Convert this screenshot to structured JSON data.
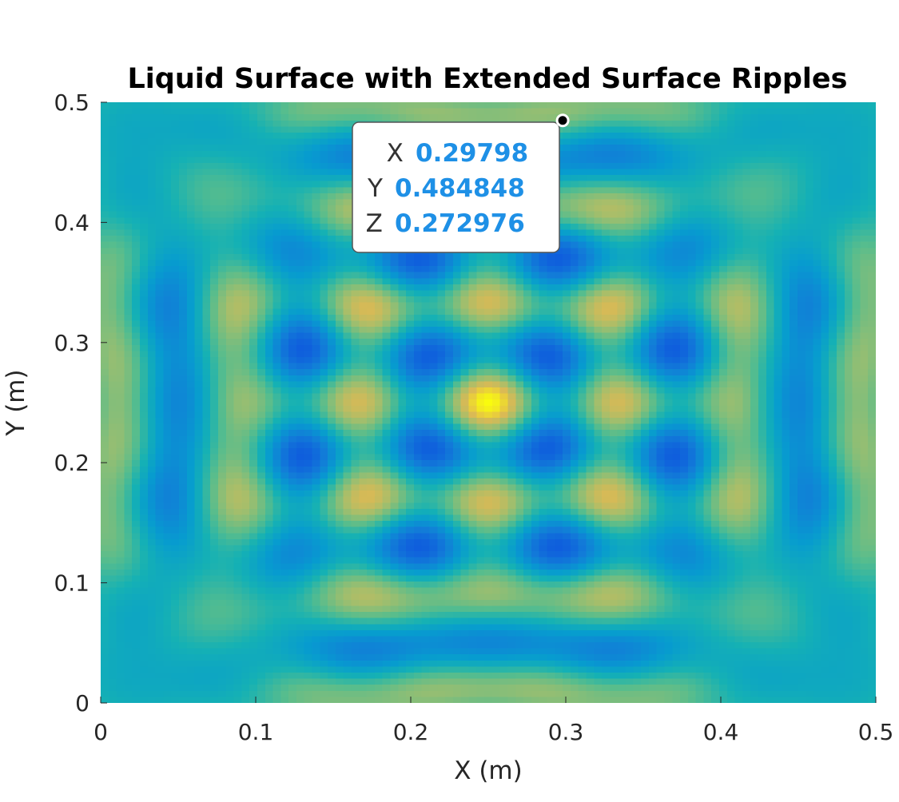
{
  "chart_data": {
    "type": "heatmap",
    "title": "Liquid Surface with Extended Surface Ripples",
    "xlabel": "X (m)",
    "ylabel": "Y (m)",
    "xlim": [
      0,
      0.5
    ],
    "ylim": [
      0,
      0.5
    ],
    "x_ticks": [
      "0",
      "0.1",
      "0.2",
      "0.3",
      "0.4",
      "0.5"
    ],
    "y_ticks": [
      "0",
      "0.1",
      "0.2",
      "0.3",
      "0.4",
      "0.5"
    ],
    "colormap": "parula",
    "colors": {
      "low": "#352a87",
      "mid": "#14b4c4",
      "high": "#f9fb0e"
    },
    "grid": false,
    "datatip": {
      "x_name": "X",
      "x_value": "0.29798",
      "y_name": "Y",
      "y_value": "0.484848",
      "z_name": "Z",
      "z_value": "0.272976",
      "value_color": "#1e90e6"
    }
  }
}
